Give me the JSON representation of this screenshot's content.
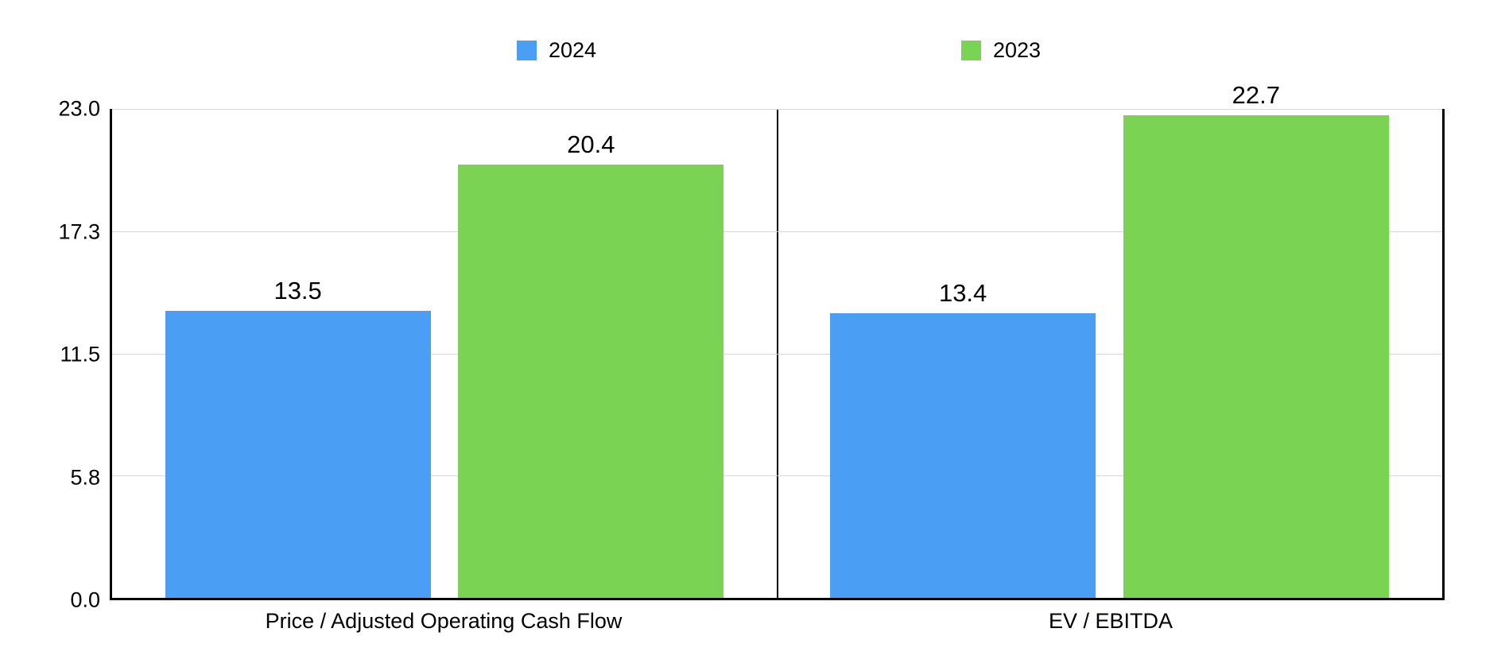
{
  "colors": {
    "series_2024": "#4A9EF4",
    "series_2023": "#7BD354",
    "gridline": "#d6d6d6",
    "axis": "#000000",
    "text": "#000000",
    "background": "#ffffff"
  },
  "legend": {
    "position": "top",
    "items": [
      {
        "label": "2024",
        "color": "#4A9EF4"
      },
      {
        "label": "2023",
        "color": "#7BD354"
      }
    ]
  },
  "chart_data": {
    "type": "bar",
    "title": "",
    "xlabel": "",
    "ylabel": "",
    "categories": [
      "Price / Adjusted Operating Cash Flow",
      "EV / EBITDA"
    ],
    "series": [
      {
        "name": "2024",
        "color": "#4A9EF4",
        "values": [
          13.5,
          13.4
        ]
      },
      {
        "name": "2023",
        "color": "#7BD354",
        "values": [
          20.4,
          22.7
        ]
      }
    ],
    "value_labels": [
      [
        "13.5",
        "13.4"
      ],
      [
        "20.4",
        "22.7"
      ]
    ],
    "ylim": [
      0,
      23.0
    ],
    "yticks": [
      "23.0",
      "17.3",
      "11.5",
      "5.8",
      "0.0"
    ],
    "grid": "horizontal",
    "legend_position": "top"
  }
}
